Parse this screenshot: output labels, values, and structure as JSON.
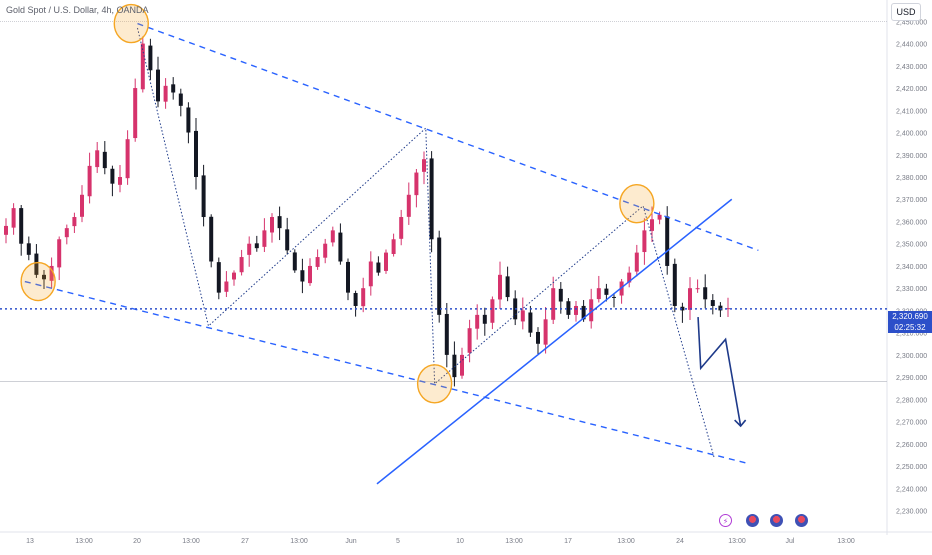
{
  "header": {
    "symbol_title": "Gold Spot / U.S. Dollar, 4h, OANDA",
    "currency_button": "USD"
  },
  "price_marker": {
    "price": "2,320.690",
    "countdown": "02:25:32"
  },
  "event_icons": [
    "flash-icon",
    "us-flag-icon",
    "us-flag-icon",
    "us-flag-icon"
  ],
  "colors": {
    "bull": "#089981",
    "bear": "#131722",
    "bull_alt": "#d6336c",
    "trend": "#2962ff",
    "highlight": "#f5a623",
    "price_line": "#2c4fc9",
    "axis_text": "#787b86"
  },
  "chart_data": {
    "type": "candlestick",
    "y_axis": {
      "ylim": [
        2228,
        2456
      ],
      "ticks": [
        "2,450.000",
        "2,440.000",
        "2,430.000",
        "2,420.000",
        "2,410.000",
        "2,400.000",
        "2,390.000",
        "2,380.000",
        "2,370.000",
        "2,360.000",
        "2,350.000",
        "2,340.000",
        "2,330.000",
        "2,320.000",
        "2,310.000",
        "2,300.000",
        "2,290.000",
        "2,280.000",
        "2,270.000",
        "2,260.000",
        "2,250.000",
        "2,240.000",
        "2,230.000"
      ]
    },
    "x_axis": {
      "ticks": [
        "13",
        "13:00",
        "20",
        "13:00",
        "27",
        "13:00",
        "Jun",
        "5",
        "10",
        "13:00",
        "17",
        "13:00",
        "24",
        "13:00",
        "Jul",
        "13:00"
      ]
    },
    "price_path_close": [
      2358,
      2366,
      2350,
      2345,
      2336,
      2334,
      2340,
      2352,
      2357,
      2362,
      2372,
      2385,
      2392,
      2384,
      2377,
      2380,
      2397,
      2420,
      2440,
      2428,
      2414,
      2421,
      2418,
      2412,
      2400,
      2380,
      2362,
      2342,
      2328,
      2333,
      2337,
      2344,
      2350,
      2348,
      2356,
      2362,
      2357,
      2347,
      2338,
      2333,
      2340,
      2344,
      2350,
      2356,
      2342,
      2328,
      2322,
      2330,
      2342,
      2337,
      2346,
      2352,
      2362,
      2372,
      2382,
      2388,
      2352,
      2318,
      2300,
      2290,
      2300,
      2312,
      2318,
      2314,
      2325,
      2336,
      2326,
      2316,
      2320,
      2310,
      2305,
      2316,
      2330,
      2324,
      2318,
      2322,
      2316,
      2325,
      2330,
      2327,
      2326,
      2333,
      2337,
      2346,
      2356,
      2361,
      2363,
      2340,
      2322,
      2320,
      2330,
      2330,
      2325,
      2322,
      2320,
      2321
    ],
    "horizontal_levels": [
      2320.69,
      2288
    ],
    "channel_upper": {
      "from": [
        0.155,
        2449
      ],
      "to": [
        0.855,
        2347
      ]
    },
    "channel_lower": {
      "from": [
        0.028,
        2333
      ],
      "to": [
        0.845,
        2251
      ]
    },
    "rising_trendline": {
      "from": [
        0.425,
        2242
      ],
      "to": [
        0.825,
        2370
      ]
    },
    "zigzag_pattern": [
      [
        0.155,
        2447
      ],
      [
        0.235,
        2313
      ],
      [
        0.48,
        2402
      ],
      [
        0.49,
        2287
      ],
      [
        0.725,
        2367
      ],
      [
        0.805,
        2254
      ]
    ],
    "projection_arrow": [
      [
        0.787,
        2317
      ],
      [
        0.79,
        2294
      ],
      [
        0.818,
        2307
      ],
      [
        0.835,
        2268
      ]
    ],
    "highlight_circles": [
      [
        0.043,
        2333
      ],
      [
        0.148,
        2449
      ],
      [
        0.49,
        2287
      ],
      [
        0.718,
        2368
      ]
    ]
  }
}
